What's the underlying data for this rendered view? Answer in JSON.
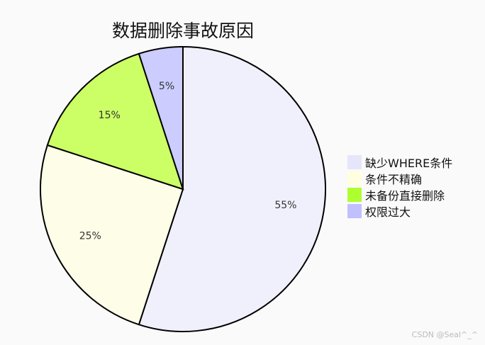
{
  "chart_data": {
    "type": "pie",
    "title": "数据删除事故原因",
    "categories": [
      "缺少WHERE条件",
      "条件不精确",
      "未备份直接删除",
      "权限过大"
    ],
    "values": [
      55,
      25,
      15,
      5
    ],
    "labels": [
      "55%",
      "25%",
      "15%",
      "5%"
    ],
    "slice_colors": [
      "#f0f0fc",
      "#fefee8",
      "#ccff66",
      "#ccccff"
    ],
    "legend_colors": [
      "#e6e6fa",
      "#ffffe0",
      "#adff2f",
      "#c0c0ff"
    ],
    "legend_position": "right",
    "start_angle": "top",
    "direction": "clockwise"
  },
  "watermark": "CSDN @Seal^_^"
}
